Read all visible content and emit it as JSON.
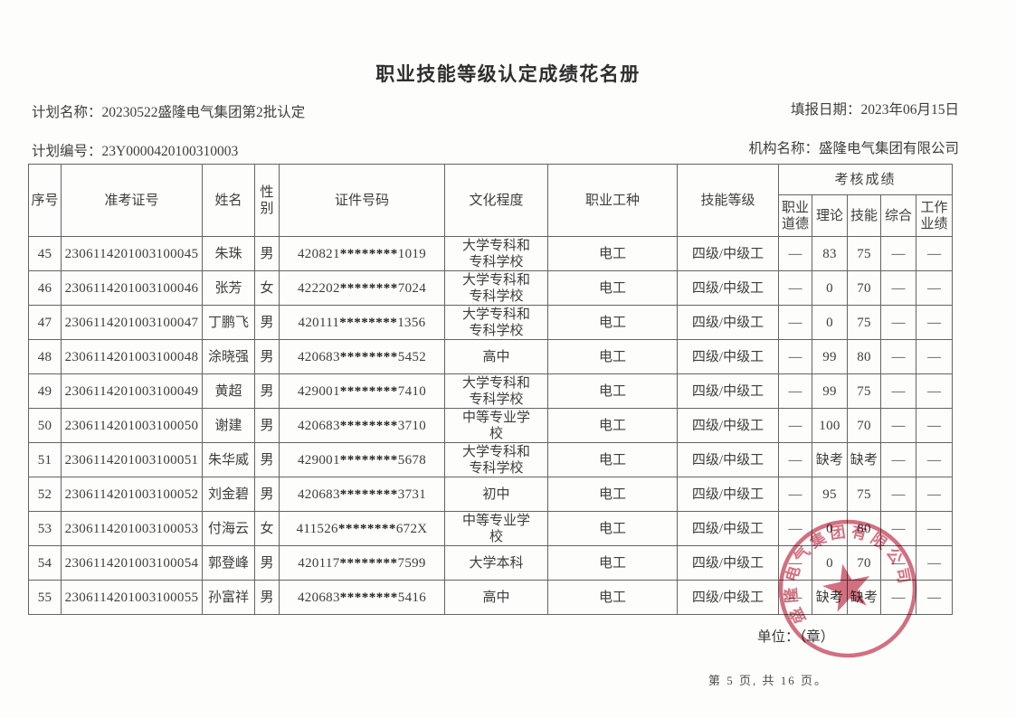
{
  "title": "职业技能等级认定成绩花名册",
  "meta": {
    "plan_name_label": "计划名称：",
    "plan_name_value": "20230522盛隆电气集团第2批认定",
    "plan_no_label": "计划编号：",
    "plan_no_value": "23Y0000420100310003",
    "fill_date_label": "填报日期：",
    "fill_date_value": "2023年06月15日",
    "org_label": "机构名称：",
    "org_value": "盛隆电气集团有限公司"
  },
  "table": {
    "headers": {
      "serial": "序号",
      "ticket": "准考证号",
      "name": "姓名",
      "gender": "性别",
      "id_number": "证件号码",
      "education": "文化程度",
      "occupation": "职业工种",
      "skill_level": "技能等级",
      "score_group": "考核成绩",
      "sub": [
        "职业\n道德",
        "理论",
        "技能",
        "综合",
        "工作\n业绩"
      ]
    },
    "rows": [
      {
        "serial": "45",
        "ticket": "2306114201003100045",
        "name": "朱珠",
        "gender": "男",
        "id_number": "420821********1019",
        "education": "大学专科和\n专科学校",
        "occupation": "电工",
        "skill_level": "四级/中级工",
        "scores": [
          "—",
          "83",
          "75",
          "—",
          "—"
        ]
      },
      {
        "serial": "46",
        "ticket": "2306114201003100046",
        "name": "张芳",
        "gender": "女",
        "id_number": "422202********7024",
        "education": "大学专科和\n专科学校",
        "occupation": "电工",
        "skill_level": "四级/中级工",
        "scores": [
          "—",
          "0",
          "70",
          "—",
          "—"
        ]
      },
      {
        "serial": "47",
        "ticket": "2306114201003100047",
        "name": "丁鹏飞",
        "gender": "男",
        "id_number": "420111********1356",
        "education": "大学专科和\n专科学校",
        "occupation": "电工",
        "skill_level": "四级/中级工",
        "scores": [
          "—",
          "0",
          "75",
          "—",
          "—"
        ]
      },
      {
        "serial": "48",
        "ticket": "2306114201003100048",
        "name": "涂晓强",
        "gender": "男",
        "id_number": "420683********5452",
        "education": "高中",
        "occupation": "电工",
        "skill_level": "四级/中级工",
        "scores": [
          "—",
          "99",
          "80",
          "—",
          "—"
        ]
      },
      {
        "serial": "49",
        "ticket": "2306114201003100049",
        "name": "黄超",
        "gender": "男",
        "id_number": "429001********7410",
        "education": "大学专科和\n专科学校",
        "occupation": "电工",
        "skill_level": "四级/中级工",
        "scores": [
          "—",
          "99",
          "75",
          "—",
          "—"
        ]
      },
      {
        "serial": "50",
        "ticket": "2306114201003100050",
        "name": "谢建",
        "gender": "男",
        "id_number": "420683********3710",
        "education": "中等专业学\n校",
        "occupation": "电工",
        "skill_level": "四级/中级工",
        "scores": [
          "—",
          "100",
          "70",
          "—",
          "—"
        ]
      },
      {
        "serial": "51",
        "ticket": "2306114201003100051",
        "name": "朱华威",
        "gender": "男",
        "id_number": "429001********5678",
        "education": "大学专科和\n专科学校",
        "occupation": "电工",
        "skill_level": "四级/中级工",
        "scores": [
          "—",
          "缺考",
          "缺考",
          "—",
          "—"
        ]
      },
      {
        "serial": "52",
        "ticket": "2306114201003100052",
        "name": "刘金碧",
        "gender": "男",
        "id_number": "420683********3731",
        "education": "初中",
        "occupation": "电工",
        "skill_level": "四级/中级工",
        "scores": [
          "—",
          "95",
          "75",
          "—",
          "—"
        ]
      },
      {
        "serial": "53",
        "ticket": "2306114201003100053",
        "name": "付海云",
        "gender": "女",
        "id_number": "411526********672X",
        "education": "中等专业学\n校",
        "occupation": "电工",
        "skill_level": "四级/中级工",
        "scores": [
          "—",
          "0",
          "80",
          "—",
          "—"
        ]
      },
      {
        "serial": "54",
        "ticket": "2306114201003100054",
        "name": "郭登峰",
        "gender": "男",
        "id_number": "420117********7599",
        "education": "大学本科",
        "occupation": "电工",
        "skill_level": "四级/中级工",
        "scores": [
          "—",
          "0",
          "70",
          "—",
          "—"
        ]
      },
      {
        "serial": "55",
        "ticket": "2306114201003100055",
        "name": "孙富祥",
        "gender": "男",
        "id_number": "420683********5416",
        "education": "高中",
        "occupation": "电工",
        "skill_level": "四级/中级工",
        "scores": [
          "—",
          "缺考",
          "缺考",
          "—",
          "—"
        ]
      }
    ]
  },
  "unit_line": "单位：（章）",
  "footer": "第 5 页, 共 16 页。",
  "stamp": {
    "text": "盛隆电气集团有限公司",
    "color": "#cb5266"
  }
}
